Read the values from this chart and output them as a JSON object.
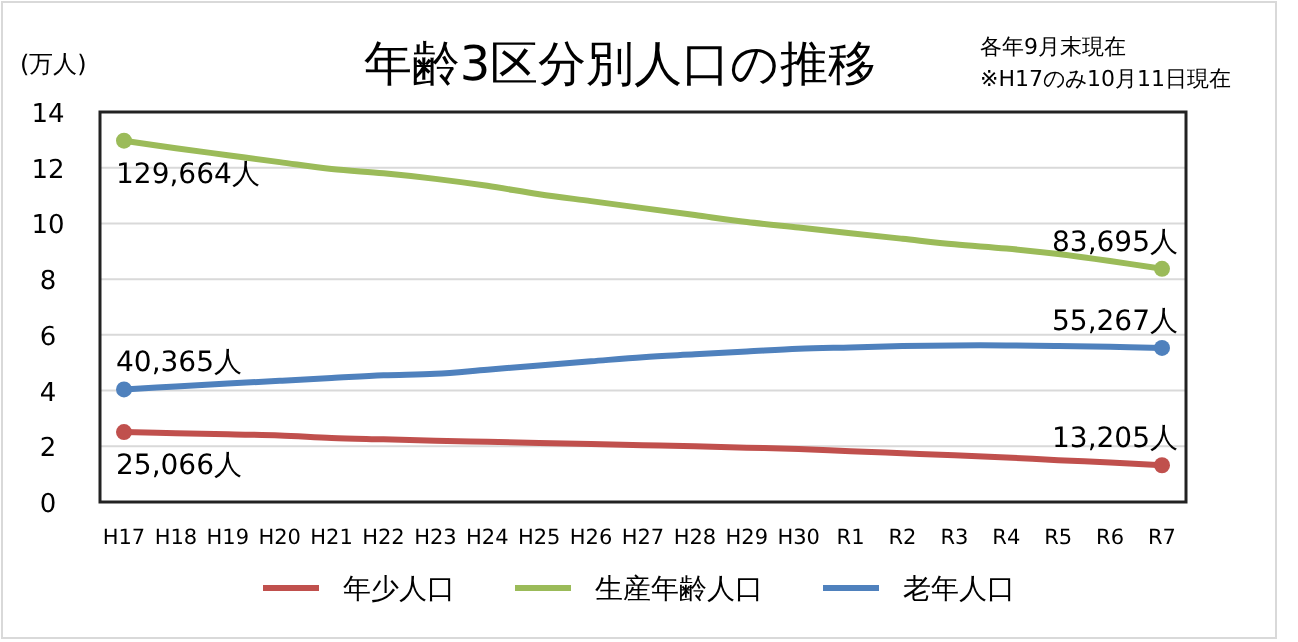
{
  "chart_data": {
    "type": "line",
    "title": "年齢3区分別人口の推移",
    "ylabel": "(万人)",
    "annotations": [
      "各年9月末現在",
      "※H17のみ10月11日現在",
      {
        "text": "25,066人",
        "x": "H17",
        "y": 2.51
      },
      {
        "text": "13,205人",
        "x": "R7",
        "y": 1.32
      },
      {
        "text": "129,664人",
        "x": "H17",
        "y": 12.97
      },
      {
        "text": "83,695人",
        "x": "R7",
        "y": 8.37
      },
      {
        "text": "40,365人",
        "x": "H17",
        "y": 4.04
      },
      {
        "text": "55,267人",
        "x": "R7",
        "y": 5.53
      }
    ],
    "categories": [
      "H17",
      "H18",
      "H19",
      "H20",
      "H21",
      "H22",
      "H23",
      "H24",
      "H25",
      "H26",
      "H27",
      "H28",
      "H29",
      "H30",
      "R1",
      "R2",
      "R3",
      "R4",
      "R5",
      "R6",
      "R7"
    ],
    "ylim": [
      0,
      14
    ],
    "yticks": [
      0,
      2,
      4,
      6,
      8,
      10,
      12,
      14
    ],
    "grid": "y",
    "legend": "bottom",
    "series": [
      {
        "name": "年少人口",
        "color": "#c0504d",
        "values": [
          2.51,
          2.47,
          2.43,
          2.39,
          2.3,
          2.25,
          2.2,
          2.16,
          2.12,
          2.08,
          2.04,
          2.0,
          1.95,
          1.9,
          1.82,
          1.75,
          1.68,
          1.6,
          1.5,
          1.42,
          1.32
        ]
      },
      {
        "name": "生産年齢人口",
        "color": "#9bbb59",
        "values": [
          12.97,
          12.7,
          12.45,
          12.2,
          11.95,
          11.8,
          11.6,
          11.35,
          11.05,
          10.8,
          10.55,
          10.3,
          10.05,
          9.85,
          9.65,
          9.45,
          9.25,
          9.1,
          8.9,
          8.65,
          8.37
        ]
      },
      {
        "name": "老年人口",
        "color": "#4f81bd",
        "values": [
          4.04,
          4.15,
          4.25,
          4.35,
          4.45,
          4.55,
          4.6,
          4.75,
          4.9,
          5.05,
          5.2,
          5.3,
          5.4,
          5.5,
          5.55,
          5.6,
          5.62,
          5.62,
          5.6,
          5.57,
          5.53
        ]
      }
    ]
  }
}
